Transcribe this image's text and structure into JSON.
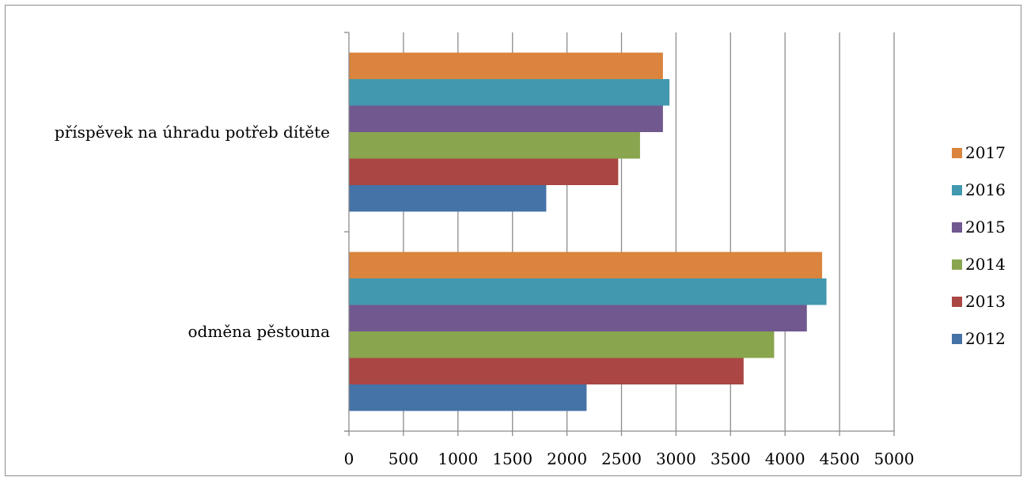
{
  "chart_data": {
    "type": "bar",
    "orientation": "horizontal",
    "title": "",
    "xlabel": "",
    "ylabel": "",
    "categories": [
      "odměna pěstouna",
      "příspěvek na úhradu potřeb dítěte"
    ],
    "series": [
      {
        "name": "2012",
        "color": "#4572A7",
        "values": [
          2180,
          1810
        ]
      },
      {
        "name": "2013",
        "color": "#AA4643",
        "values": [
          3620,
          2470
        ]
      },
      {
        "name": "2014",
        "color": "#89A54E",
        "values": [
          3900,
          2670
        ]
      },
      {
        "name": "2015",
        "color": "#71588F",
        "values": [
          4200,
          2880
        ]
      },
      {
        "name": "2016",
        "color": "#4198AF",
        "values": [
          4380,
          2940
        ]
      },
      {
        "name": "2017",
        "color": "#DB843D",
        "values": [
          4340,
          2880
        ]
      }
    ],
    "xlim": [
      0,
      5000
    ],
    "xticks": [
      "0",
      "500",
      "1000",
      "1500",
      "2000",
      "2500",
      "3000",
      "3500",
      "4000",
      "4500",
      "5000"
    ],
    "grid": "vertical",
    "legend": "right"
  }
}
